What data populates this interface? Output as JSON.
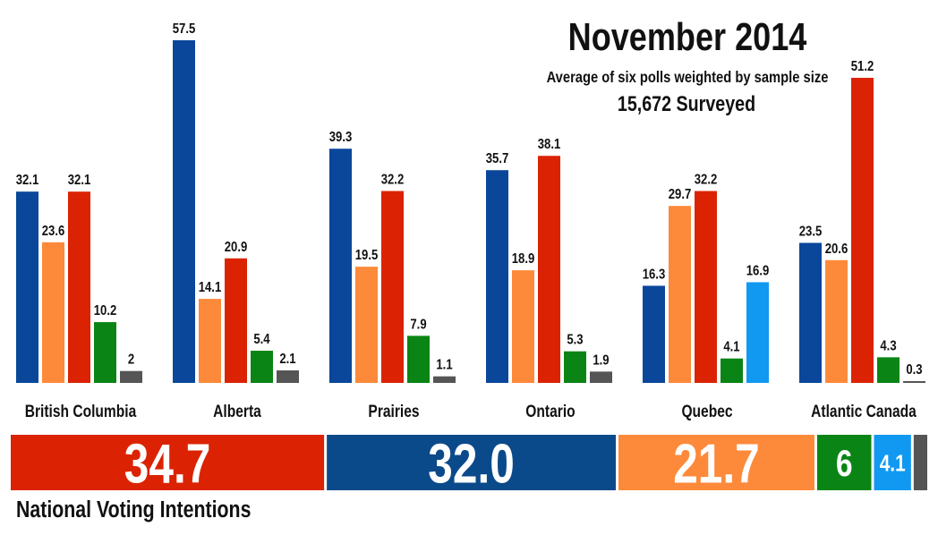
{
  "chart_data": {
    "type": "bar",
    "title": "November 2014",
    "subtitle": "Average of six polls weighted by sample size",
    "surveyed": "15,672 Surveyed",
    "categories": [
      "British Columbia",
      "Alberta",
      "Prairies",
      "Ontario",
      "Quebec",
      "Atlantic Canada"
    ],
    "series": [
      {
        "name": "Blue",
        "color": "#0a479b",
        "values": [
          32.1,
          57.5,
          39.3,
          35.7,
          16.3,
          23.5
        ]
      },
      {
        "name": "Orange",
        "color": "#fd8a3a",
        "values": [
          23.6,
          14.1,
          19.5,
          18.9,
          29.7,
          20.6
        ]
      },
      {
        "name": "Red",
        "color": "#db2303",
        "values": [
          32.1,
          20.9,
          32.2,
          38.1,
          32.2,
          51.2
        ]
      },
      {
        "name": "Green",
        "color": "#0a8515",
        "values": [
          10.2,
          5.4,
          7.9,
          5.3,
          4.1,
          4.3
        ]
      },
      {
        "name": "Grey",
        "color": "#555555",
        "values": [
          2,
          2.1,
          1.1,
          1.9,
          null,
          0.3
        ]
      },
      {
        "name": "Light Blue",
        "color": "#1199f2",
        "values": [
          null,
          null,
          null,
          null,
          16.9,
          null
        ]
      }
    ],
    "value_labels": [
      [
        "32.1",
        "23.6",
        "32.1",
        "10.2",
        "2",
        null
      ],
      [
        "57.5",
        "14.1",
        "20.9",
        "5.4",
        "2.1",
        null
      ],
      [
        "39.3",
        "19.5",
        "32.2",
        "7.9",
        "1.1",
        null
      ],
      [
        "35.7",
        "18.9",
        "38.1",
        "5.3",
        "1.9",
        null
      ],
      [
        "16.3",
        "29.7",
        "32.2",
        "4.1",
        null,
        "16.9"
      ],
      [
        "23.5",
        "20.6",
        "51.2",
        "4.3",
        "0.3",
        null
      ]
    ],
    "ylim": [
      0,
      60
    ],
    "national": {
      "label": "National Voting Intentions",
      "segments": [
        {
          "value": 34.7,
          "label": "34.7",
          "color": "#db2303"
        },
        {
          "value": 32.0,
          "label": "32.0",
          "color": "#0b4a8a"
        },
        {
          "value": 21.7,
          "label": "21.7",
          "color": "#fd8a3a"
        },
        {
          "value": 6,
          "label": "6",
          "color": "#0a8515"
        },
        {
          "value": 4.1,
          "label": "4.1",
          "color": "#1199f2"
        },
        {
          "value": 1.5,
          "label": "",
          "color": "#555555"
        }
      ]
    }
  }
}
